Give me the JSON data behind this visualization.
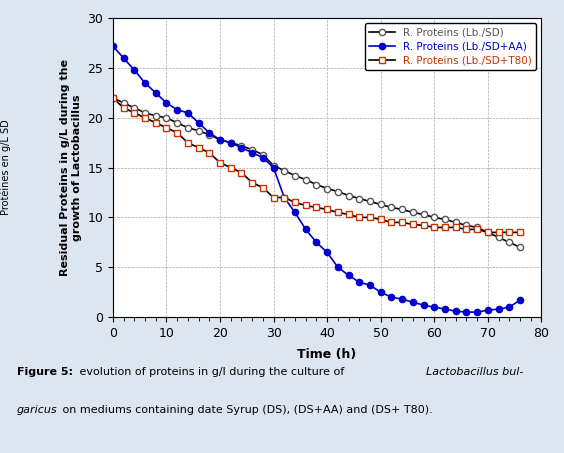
{
  "xlabel": "Time (h)",
  "ylabel_main": "Residual Proteins in g/L during the\ngrowth of Lactobacillus",
  "ylabel_secondary": "Protéines en g/L SD",
  "xlim": [
    0,
    80
  ],
  "ylim": [
    0,
    30
  ],
  "xticks": [
    0,
    10,
    20,
    30,
    40,
    50,
    60,
    70,
    80
  ],
  "yticks": [
    0,
    5,
    10,
    15,
    20,
    25,
    30
  ],
  "background": "#dce6f0",
  "plot_background": "#ffffff",
  "series_SD": {
    "label": "R. Proteins (Lb./SD)",
    "line_color": "#000000",
    "marker": "o",
    "markerfacecolor": "white",
    "markeredgecolor": "#555555",
    "linewidth": 1.2,
    "markersize": 4.5,
    "x": [
      0,
      2,
      4,
      6,
      8,
      10,
      12,
      14,
      16,
      18,
      20,
      22,
      24,
      26,
      28,
      30,
      32,
      34,
      36,
      38,
      40,
      42,
      44,
      46,
      48,
      50,
      52,
      54,
      56,
      58,
      60,
      62,
      64,
      66,
      68,
      70,
      72,
      74,
      76
    ],
    "y": [
      22,
      21.5,
      21,
      20.5,
      20.2,
      20,
      19.5,
      19,
      18.7,
      18.3,
      17.8,
      17.5,
      17.2,
      16.8,
      16.3,
      15.2,
      14.7,
      14.2,
      13.8,
      13.3,
      12.9,
      12.6,
      12.2,
      11.9,
      11.6,
      11.3,
      11.0,
      10.8,
      10.5,
      10.3,
      10.0,
      9.8,
      9.5,
      9.2,
      9.0,
      8.5,
      8.0,
      7.5,
      7.0
    ]
  },
  "series_AA": {
    "label": "R. Proteins (Lb./SD+AA)",
    "line_color": "#0000cc",
    "marker": "o",
    "markerfacecolor": "#0000cc",
    "markeredgecolor": "#0000cc",
    "linewidth": 1.2,
    "markersize": 4.5,
    "x": [
      0,
      2,
      4,
      6,
      8,
      10,
      12,
      14,
      16,
      18,
      20,
      22,
      24,
      26,
      28,
      30,
      32,
      34,
      36,
      38,
      40,
      42,
      44,
      46,
      48,
      50,
      52,
      54,
      56,
      58,
      60,
      62,
      64,
      66,
      68,
      70,
      72,
      74,
      76
    ],
    "y": [
      27.2,
      26.0,
      24.8,
      23.5,
      22.5,
      21.5,
      20.8,
      20.5,
      19.5,
      18.5,
      17.8,
      17.5,
      17.0,
      16.5,
      16.0,
      15.0,
      12.0,
      10.5,
      8.8,
      7.5,
      6.5,
      5.0,
      4.2,
      3.5,
      3.2,
      2.5,
      2.0,
      1.8,
      1.5,
      1.2,
      1.0,
      0.8,
      0.6,
      0.5,
      0.5,
      0.7,
      0.8,
      1.0,
      1.7
    ]
  },
  "series_T80": {
    "label": "R. Proteins (Lb./SD+T80)",
    "line_color": "#000000",
    "marker": "s",
    "markerfacecolor": "white",
    "markeredgecolor": "#cc3300",
    "linewidth": 1.2,
    "markersize": 4.5,
    "x": [
      0,
      2,
      4,
      6,
      8,
      10,
      12,
      14,
      16,
      18,
      20,
      22,
      24,
      26,
      28,
      30,
      32,
      34,
      36,
      38,
      40,
      42,
      44,
      46,
      48,
      50,
      52,
      54,
      56,
      58,
      60,
      62,
      64,
      66,
      68,
      70,
      72,
      74,
      76
    ],
    "y": [
      22.0,
      21.0,
      20.5,
      20.0,
      19.5,
      19.0,
      18.5,
      17.5,
      17.0,
      16.5,
      15.5,
      15.0,
      14.5,
      13.5,
      13.0,
      12.0,
      12.0,
      11.5,
      11.2,
      11.0,
      10.8,
      10.5,
      10.3,
      10.0,
      10.0,
      9.8,
      9.5,
      9.5,
      9.3,
      9.2,
      9.0,
      9.0,
      9.0,
      8.8,
      8.8,
      8.5,
      8.5,
      8.5,
      8.5
    ]
  },
  "legend_colors": [
    "#555555",
    "#0000cc",
    "#cc3300"
  ],
  "grid_color": "#aaaaaa",
  "grid_linestyle": "--",
  "grid_linewidth": 0.5
}
